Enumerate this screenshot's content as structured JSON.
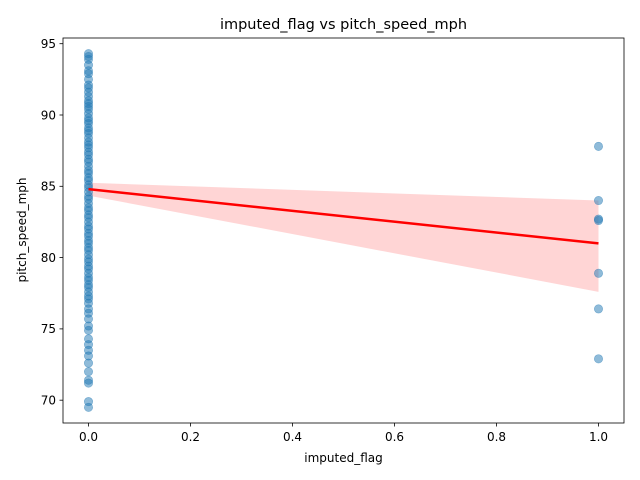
{
  "chart_data": {
    "type": "scatter",
    "title": "imputed_flag vs pitch_speed_mph",
    "xlabel": "imputed_flag",
    "ylabel": "pitch_speed_mph",
    "xlim": [
      -0.05,
      1.05
    ],
    "ylim": [
      68.4,
      95.4
    ],
    "xticks": [
      0.0,
      0.2,
      0.4,
      0.6,
      0.8,
      1.0
    ],
    "xtick_labels": [
      "0.0",
      "0.2",
      "0.4",
      "0.6",
      "0.8",
      "1.0"
    ],
    "yticks": [
      70,
      75,
      80,
      85,
      90,
      95
    ],
    "ytick_labels": [
      "70",
      "75",
      "80",
      "85",
      "90",
      "95"
    ],
    "grid": false,
    "point_color": "#1f77b4",
    "line_color": "#ff0000",
    "band_color": "#ffb3b3",
    "scatter_points": {
      "x0": [
        94.3,
        94.1,
        93.9,
        93.5,
        93.1,
        92.9,
        92.5,
        92.1,
        91.9,
        91.6,
        91.3,
        91.0,
        90.8,
        90.6,
        90.4,
        90.1,
        89.8,
        89.6,
        89.4,
        89.1,
        88.9,
        88.7,
        88.4,
        88.1,
        87.9,
        87.7,
        87.4,
        87.2,
        86.9,
        86.7,
        86.4,
        86.1,
        85.9,
        85.6,
        85.4,
        85.1,
        84.9,
        84.6,
        84.3,
        84.1,
        83.8,
        83.5,
        83.3,
        83.0,
        82.8,
        82.5,
        82.2,
        82.0,
        81.7,
        81.5,
        81.2,
        81.0,
        80.7,
        80.5,
        80.2,
        79.9,
        79.7,
        79.4,
        79.2,
        78.9,
        78.6,
        78.4,
        78.1,
        77.9,
        77.6,
        77.3,
        77.1,
        76.8,
        76.4,
        76.1,
        75.7,
        75.2,
        74.9,
        74.3,
        73.9,
        73.5,
        73.1,
        72.6,
        72.0,
        71.4,
        71.2,
        69.9,
        69.5
      ],
      "x1": [
        87.8,
        84.0,
        82.7,
        82.6,
        78.9,
        76.4,
        72.9
      ]
    },
    "regression": {
      "x": [
        0.0,
        1.0
      ],
      "y": [
        84.8,
        81.0
      ],
      "ci_upper": [
        85.25,
        84.0
      ],
      "ci_lower": [
        84.35,
        77.6
      ]
    }
  }
}
